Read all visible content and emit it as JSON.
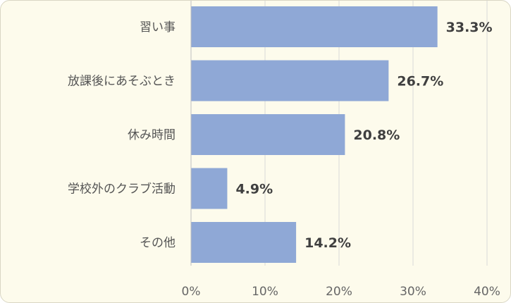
{
  "chart_data": {
    "type": "bar",
    "orientation": "horizontal",
    "categories": [
      "習い事",
      "放課後にあそぶとき",
      "休み時間",
      "学校外のクラブ活動",
      "その他"
    ],
    "values": [
      33.3,
      26.7,
      20.8,
      4.9,
      14.2
    ],
    "value_labels": [
      "33.3%",
      "26.7%",
      "20.8%",
      "4.9%",
      "14.2%"
    ],
    "xticks": [
      "0%",
      "10%",
      "20%",
      "30%",
      "40%"
    ],
    "xlim": [
      0,
      40
    ],
    "grid": true,
    "legend": "none",
    "bar_color": "#8fa8d6",
    "background_color": "#fdfbec"
  }
}
